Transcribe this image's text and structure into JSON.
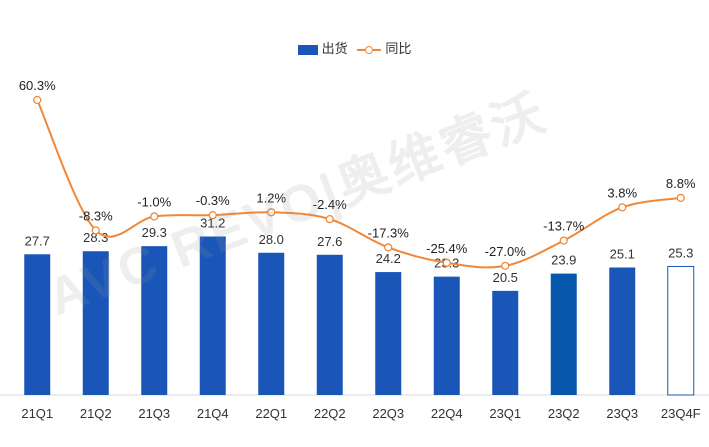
{
  "chart_data": {
    "type": "bar",
    "categories": [
      "21Q1",
      "21Q2",
      "21Q3",
      "21Q4",
      "22Q1",
      "22Q2",
      "22Q3",
      "22Q4",
      "23Q1",
      "23Q2",
      "23Q3",
      "23Q4F"
    ],
    "series": [
      {
        "name": "出货",
        "kind": "bar",
        "values": [
          27.7,
          28.3,
          29.3,
          31.2,
          28.0,
          27.6,
          24.2,
          23.3,
          20.5,
          23.9,
          25.1,
          25.3
        ],
        "labels": [
          "27.7",
          "28.3",
          "29.3",
          "31.2",
          "28.0",
          "27.6",
          "24.2",
          "23.3",
          "20.5",
          "23.9",
          "25.1",
          "25.3"
        ]
      },
      {
        "name": "同比",
        "kind": "line",
        "values": [
          60.3,
          -8.3,
          -1.0,
          -0.3,
          1.2,
          -2.4,
          -17.3,
          -25.4,
          -27.0,
          -13.7,
          3.8,
          8.8
        ],
        "labels": [
          "60.3%",
          "-8.3%",
          "-1.0%",
          "-0.3%",
          "1.2%",
          "-2.4%",
          "-17.3%",
          "-25.4%",
          "-27.0%",
          "-13.7%",
          "3.8%",
          "8.8%"
        ]
      }
    ],
    "title": "",
    "xlabel": "",
    "ylabel": "",
    "bar_ylim": [
      0,
      50
    ],
    "line_ylim": [
      -50,
      70
    ],
    "grid": false,
    "legend_position": "top-center",
    "colors": {
      "bar": "#1a56b8",
      "bar_highlight": "#0757ad",
      "forecast_border": "#1a56b8",
      "line": "#f0883a",
      "baseline": "#d9d9d9"
    }
  },
  "watermark": "AVC REVO|奥维睿沃"
}
